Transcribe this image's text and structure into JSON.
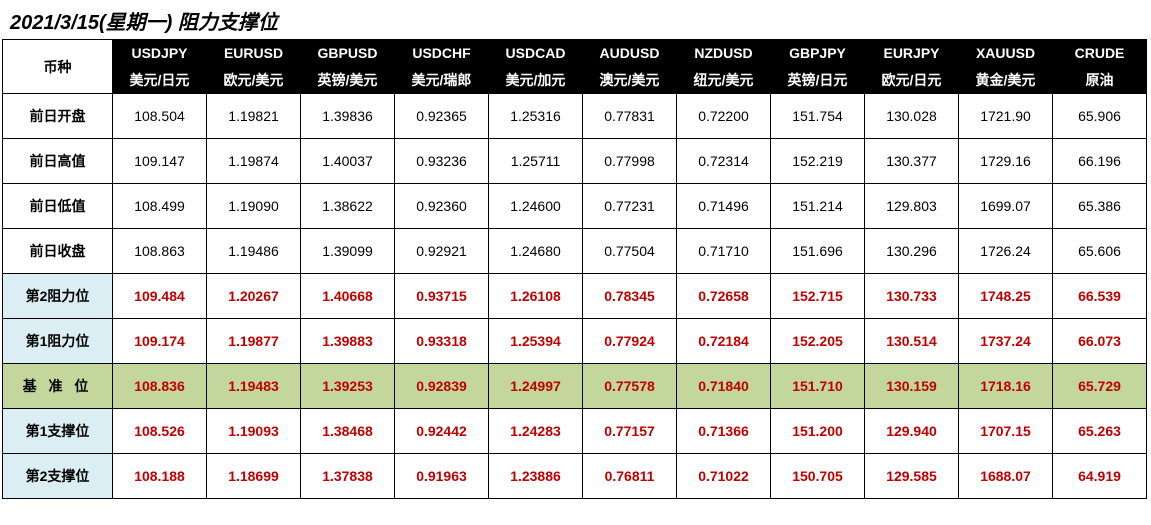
{
  "title": "2021/3/15(星期一) 阻力支撑位",
  "corner_label": "币种",
  "columns": [
    {
      "code": "USDJPY",
      "name": "美元/日元"
    },
    {
      "code": "EURUSD",
      "name": "欧元/美元"
    },
    {
      "code": "GBPUSD",
      "name": "英镑/美元"
    },
    {
      "code": "USDCHF",
      "name": "美元/瑞郎"
    },
    {
      "code": "USDCAD",
      "name": "美元/加元"
    },
    {
      "code": "AUDUSD",
      "name": "澳元/美元"
    },
    {
      "code": "NZDUSD",
      "name": "纽元/美元"
    },
    {
      "code": "GBPJPY",
      "name": "英镑/日元"
    },
    {
      "code": "EURJPY",
      "name": "欧元/日元"
    },
    {
      "code": "XAUUSD",
      "name": "黄金/美元"
    },
    {
      "code": "CRUDE",
      "name": "原油"
    }
  ],
  "rows": [
    {
      "label": "前日开盘",
      "kind": "plain",
      "values": [
        "108.504",
        "1.19821",
        "1.39836",
        "0.92365",
        "1.25316",
        "0.77831",
        "0.72200",
        "151.754",
        "130.028",
        "1721.90",
        "65.906"
      ]
    },
    {
      "label": "前日高值",
      "kind": "plain",
      "values": [
        "109.147",
        "1.19874",
        "1.40037",
        "0.93236",
        "1.25711",
        "0.77998",
        "0.72314",
        "152.219",
        "130.377",
        "1729.16",
        "66.196"
      ]
    },
    {
      "label": "前日低值",
      "kind": "plain",
      "values": [
        "108.499",
        "1.19090",
        "1.38622",
        "0.92360",
        "1.24600",
        "0.77231",
        "0.71496",
        "151.214",
        "129.803",
        "1699.07",
        "65.386"
      ]
    },
    {
      "label": "前日收盘",
      "kind": "plain",
      "values": [
        "108.863",
        "1.19486",
        "1.39099",
        "0.92921",
        "1.24680",
        "0.77504",
        "0.71710",
        "151.696",
        "130.296",
        "1726.24",
        "65.606"
      ]
    },
    {
      "label": "第2阻力位",
      "kind": "pivot",
      "values": [
        "109.484",
        "1.20267",
        "1.40668",
        "0.93715",
        "1.26108",
        "0.78345",
        "0.72658",
        "152.715",
        "130.733",
        "1748.25",
        "66.539"
      ]
    },
    {
      "label": "第1阻力位",
      "kind": "pivot",
      "values": [
        "109.174",
        "1.19877",
        "1.39883",
        "0.93318",
        "1.25394",
        "0.77924",
        "0.72184",
        "152.205",
        "130.514",
        "1737.24",
        "66.073"
      ]
    },
    {
      "label": "基 准 位",
      "kind": "basis",
      "values": [
        "108.836",
        "1.19483",
        "1.39253",
        "0.92839",
        "1.24997",
        "0.77578",
        "0.71840",
        "151.710",
        "130.159",
        "1718.16",
        "65.729"
      ]
    },
    {
      "label": "第1支撑位",
      "kind": "pivot",
      "values": [
        "108.526",
        "1.19093",
        "1.38468",
        "0.92442",
        "1.24283",
        "0.77157",
        "0.71366",
        "151.200",
        "129.940",
        "1707.15",
        "65.263"
      ]
    },
    {
      "label": "第2支撑位",
      "kind": "pivot",
      "values": [
        "108.188",
        "1.18699",
        "1.37838",
        "0.91963",
        "1.23886",
        "0.76811",
        "0.71022",
        "150.705",
        "129.585",
        "1688.07",
        "64.919"
      ]
    }
  ],
  "colors": {
    "header_bg": "#000000",
    "header_fg": "#ffffff",
    "pivot_label_bg": "#daeef3",
    "pivot_value_fg": "#c00000",
    "basis_bg": "#c3d69b",
    "border": "#000000",
    "bg": "#ffffff"
  }
}
